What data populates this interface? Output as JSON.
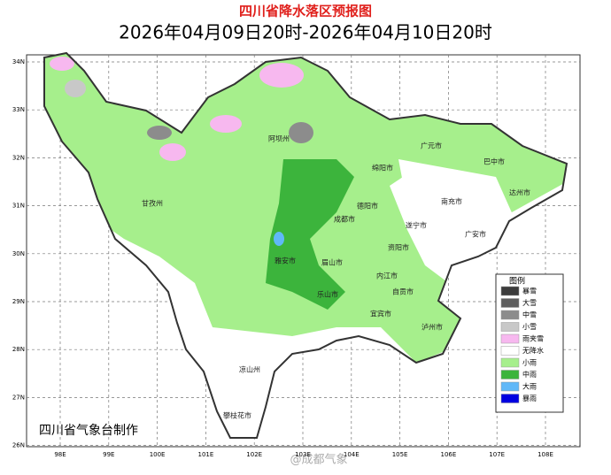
{
  "title": "四川省降水落区预报图",
  "subtitle": "2026年04月09日20时-2026年04月10日20时",
  "lat_labels": [
    "34N",
    "33N",
    "32N",
    "31N",
    "30N",
    "29N",
    "28N",
    "27N",
    "26N"
  ],
  "lon_labels": [
    "98E",
    "99E",
    "100E",
    "101E",
    "102E",
    "103E",
    "104E",
    "105E",
    "106E",
    "107E",
    "108E"
  ],
  "cities": [
    "阿坝州",
    "广元市",
    "巴中市",
    "绵阳市",
    "甘孜州",
    "达州市",
    "南充市",
    "德阳市",
    "成都市",
    "遂宁市",
    "广安市",
    "资阳市",
    "雅安市",
    "眉山市",
    "内江市",
    "乐山市",
    "自贡市",
    "宜宾市",
    "泸州市",
    "凉山州",
    "攀枝花市"
  ],
  "legend": {
    "title": "图例",
    "items": [
      {
        "label": "暴雪",
        "color": "#3c3c3c"
      },
      {
        "label": "大雪",
        "color": "#5e5e5e"
      },
      {
        "label": "中雪",
        "color": "#8c8c8c"
      },
      {
        "label": "小雪",
        "color": "#c8c8c8"
      },
      {
        "label": "雨夹雪",
        "color": "#f7b8ef"
      },
      {
        "label": "无降水",
        "color": "#ffffff"
      },
      {
        "label": "小雨",
        "color": "#a6ef8c"
      },
      {
        "label": "中雨",
        "color": "#3cb43c"
      },
      {
        "label": "大雨",
        "color": "#60b8f8"
      },
      {
        "label": "暴雨",
        "color": "#0000e0"
      }
    ]
  },
  "credit": "四川省气象台制作",
  "watermark": "@成都气象"
}
